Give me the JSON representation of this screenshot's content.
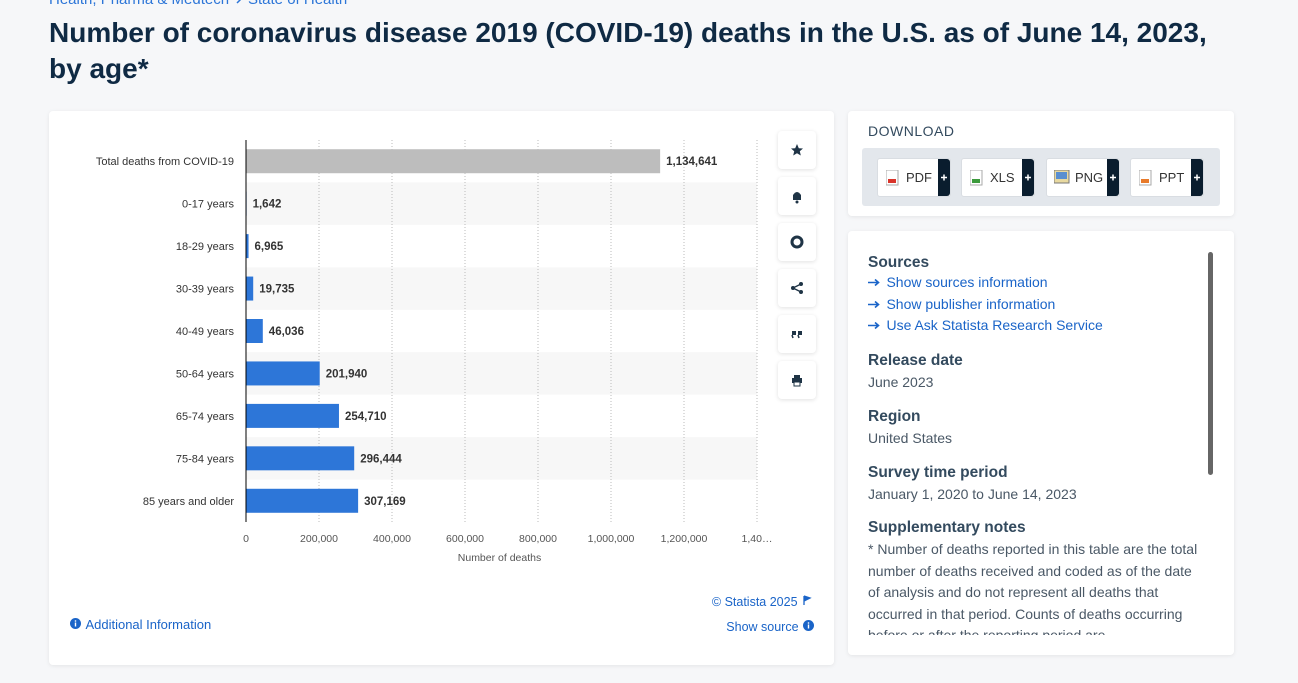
{
  "breadcrumb": [
    "Health, Pharma & Medtech",
    "State of Health"
  ],
  "title": "Number of coronavirus disease 2019 (COVID-19) deaths in the U.S. as of June 14, 2023, by age*",
  "chart_data": {
    "type": "bar",
    "orientation": "horizontal",
    "categories": [
      "Total deaths from COVID-19",
      "0-17 years",
      "18-29 years",
      "30-39 years",
      "40-49 years",
      "50-64 years",
      "65-74 years",
      "75-84 years",
      "85 years and older"
    ],
    "values": [
      1134641,
      1642,
      6965,
      19735,
      46036,
      201940,
      254710,
      296444,
      307169
    ],
    "value_labels": [
      "1,134,641",
      "1,642",
      "6,965",
      "19,735",
      "46,036",
      "201,940",
      "254,710",
      "296,444",
      "307,169"
    ],
    "colors": [
      "#bdbdbd",
      "#2d76d8",
      "#2d76d8",
      "#2d76d8",
      "#2d76d8",
      "#2d76d8",
      "#2d76d8",
      "#2d76d8",
      "#2d76d8"
    ],
    "xlabel": "Number of deaths",
    "xlim": [
      0,
      1400000
    ],
    "xticks": [
      0,
      {
        "value": 200000,
        "label": "200,000"
      },
      {
        "value": 400000,
        "label": "400,000"
      },
      {
        "value": 600000,
        "label": "600,000"
      },
      {
        "value": 800000,
        "label": "800,000"
      },
      {
        "value": 1000000,
        "label": "1,000,000"
      },
      {
        "value": 1200000,
        "label": "1,200,000"
      },
      {
        "value": 1400000,
        "label": "1,40…"
      }
    ],
    "grid": true
  },
  "footer": {
    "credit": "© Statista 2025",
    "show_source": "Show source",
    "additional_information": "Additional Information"
  },
  "download": {
    "title": "DOWNLOAD",
    "formats": [
      "PDF",
      "XLS",
      "PNG",
      "PPT"
    ]
  },
  "info": {
    "sources": {
      "heading": "Sources",
      "links": [
        "Show sources information",
        "Show publisher information",
        "Use Ask Statista Research Service"
      ]
    },
    "release_date": {
      "heading": "Release date",
      "text": "June 2023"
    },
    "region": {
      "heading": "Region",
      "text": "United States"
    },
    "survey_period": {
      "heading": "Survey time period",
      "text": "January 1, 2020 to June 14, 2023"
    },
    "notes": {
      "heading": "Supplementary notes",
      "text": "* Number of deaths reported in this table are the total number of deaths received and coded as of the date of analysis and do not represent all deaths that occurred in that period. Counts of deaths occurring before or after the reporting period are"
    }
  }
}
